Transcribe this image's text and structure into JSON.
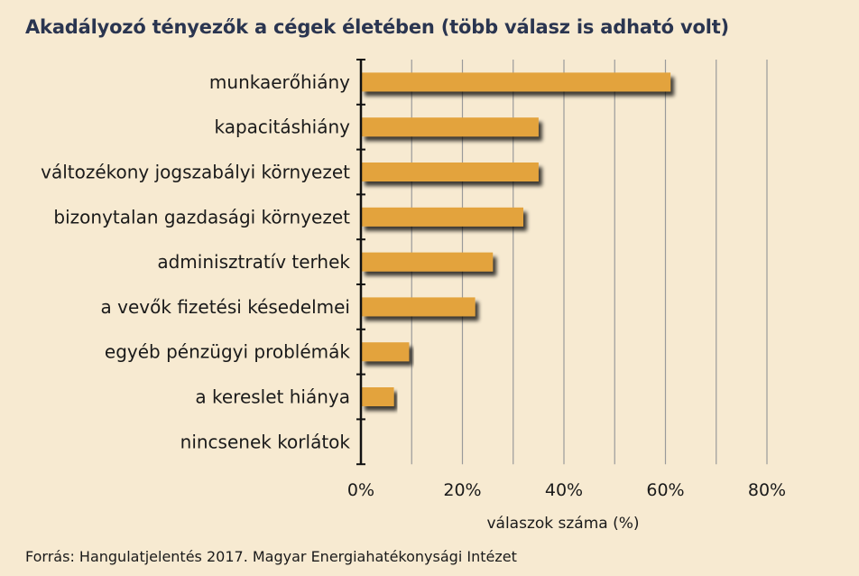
{
  "title": "Akadályozó tényezők a cégek életében (több válasz is adható volt)",
  "source": "Forrás: Hangulatjelentés 2017. Magyar Energiahatékonysági Intézet",
  "colors": {
    "bar": "#e3a33c",
    "shadow": "#3a2d18",
    "background": "#f7ead1",
    "grid": "#9a9a9a"
  },
  "chart_data": {
    "type": "bar",
    "orientation": "horizontal",
    "title": "Akadályozó tényezők a cégek életében (több válasz is adható volt)",
    "xlabel": "válaszok száma (%)",
    "ylabel": "",
    "categories": [
      "munkaerőhiány",
      "kapacitáshiány",
      "változékony jogszabályi környezet",
      "bizonytalan gazdasági környezet",
      "adminisztratív terhek",
      "a vevők fizetési késedelmei",
      "egyéb pénzügyi problémák",
      "a kereslet hiánya",
      "nincsenek korlátok"
    ],
    "values": [
      61,
      35,
      35,
      32,
      26,
      22.5,
      9.5,
      6.5,
      0
    ],
    "xlim": [
      0,
      80
    ],
    "x_ticks": [
      0,
      20,
      40,
      60,
      80
    ],
    "x_tick_labels": [
      "0%",
      "20%",
      "40%",
      "60%",
      "80%"
    ],
    "grid": true
  }
}
